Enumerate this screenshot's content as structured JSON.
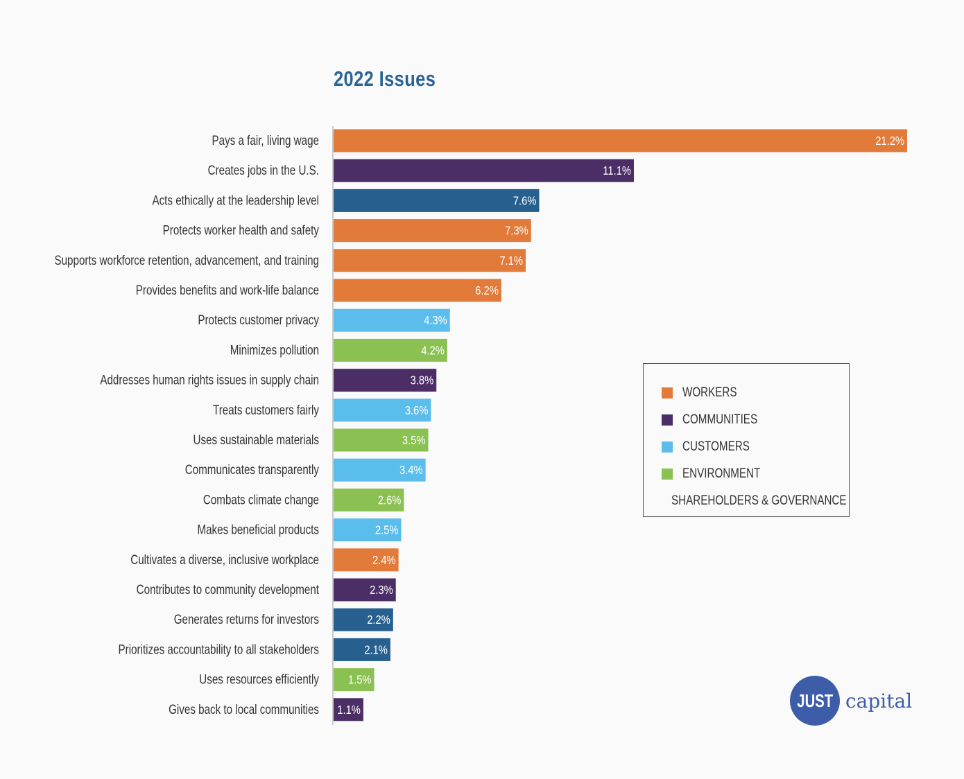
{
  "chart_data": {
    "type": "bar",
    "orientation": "horizontal",
    "title": "2022 Issues",
    "xlabel": "",
    "ylabel": "",
    "xlim": [
      0,
      21.2
    ],
    "grid": false,
    "legend_position": "right",
    "value_format": "%",
    "categories": [
      "Pays a fair, living wage",
      "Creates jobs in the U.S.",
      "Acts ethically at the leadership level",
      "Protects worker health and safety",
      "Supports workforce retention, advancement, and training",
      "Provides benefits and work-life balance",
      "Protects customer privacy",
      "Minimizes pollution",
      "Addresses human rights issues in supply chain",
      "Treats customers fairly",
      "Uses sustainable materials",
      "Communicates transparently",
      "Combats climate change",
      "Makes beneficial products",
      "Cultivates a diverse, inclusive workplace",
      "Contributes to community development",
      "Generates returns for investors",
      "Prioritizes accountability to all stakeholders",
      "Uses resources efficiently",
      "Gives back to local communities"
    ],
    "values": [
      21.2,
      11.1,
      7.6,
      7.3,
      7.1,
      6.2,
      4.3,
      4.2,
      3.8,
      3.6,
      3.5,
      3.4,
      2.6,
      2.5,
      2.4,
      2.3,
      2.2,
      2.1,
      1.5,
      1.1
    ],
    "value_labels": [
      "21.2%",
      "11.1%",
      "7.6%",
      "7.3%",
      "7.1%",
      "6.2%",
      "4.3%",
      "4.2%",
      "3.8%",
      "3.6%",
      "3.5%",
      "3.4%",
      "2.6%",
      "2.5%",
      "2.4%",
      "2.3%",
      "2.2%",
      "2.1%",
      "1.5%",
      "1.1%"
    ],
    "groups": [
      "workers",
      "communities",
      "shareholders",
      "workers",
      "workers",
      "workers",
      "customers",
      "environment",
      "communities",
      "customers",
      "environment",
      "customers",
      "environment",
      "customers",
      "workers",
      "communities",
      "shareholders",
      "shareholders",
      "environment",
      "communities"
    ],
    "legend": [
      {
        "key": "workers",
        "label": "WORKERS",
        "color": "#e27a3a"
      },
      {
        "key": "communities",
        "label": "COMMUNITIES",
        "color": "#4b2e66"
      },
      {
        "key": "customers",
        "label": "CUSTOMERS",
        "color": "#5bbdeb"
      },
      {
        "key": "environment",
        "label": "ENVIRONMENT",
        "color": "#8bc152"
      },
      {
        "key": "shareholders",
        "label": "SHAREHOLDERS & GOVERNANCE",
        "color": "#27608f"
      }
    ]
  },
  "logo": {
    "badge": "JUST",
    "text": "capital"
  }
}
